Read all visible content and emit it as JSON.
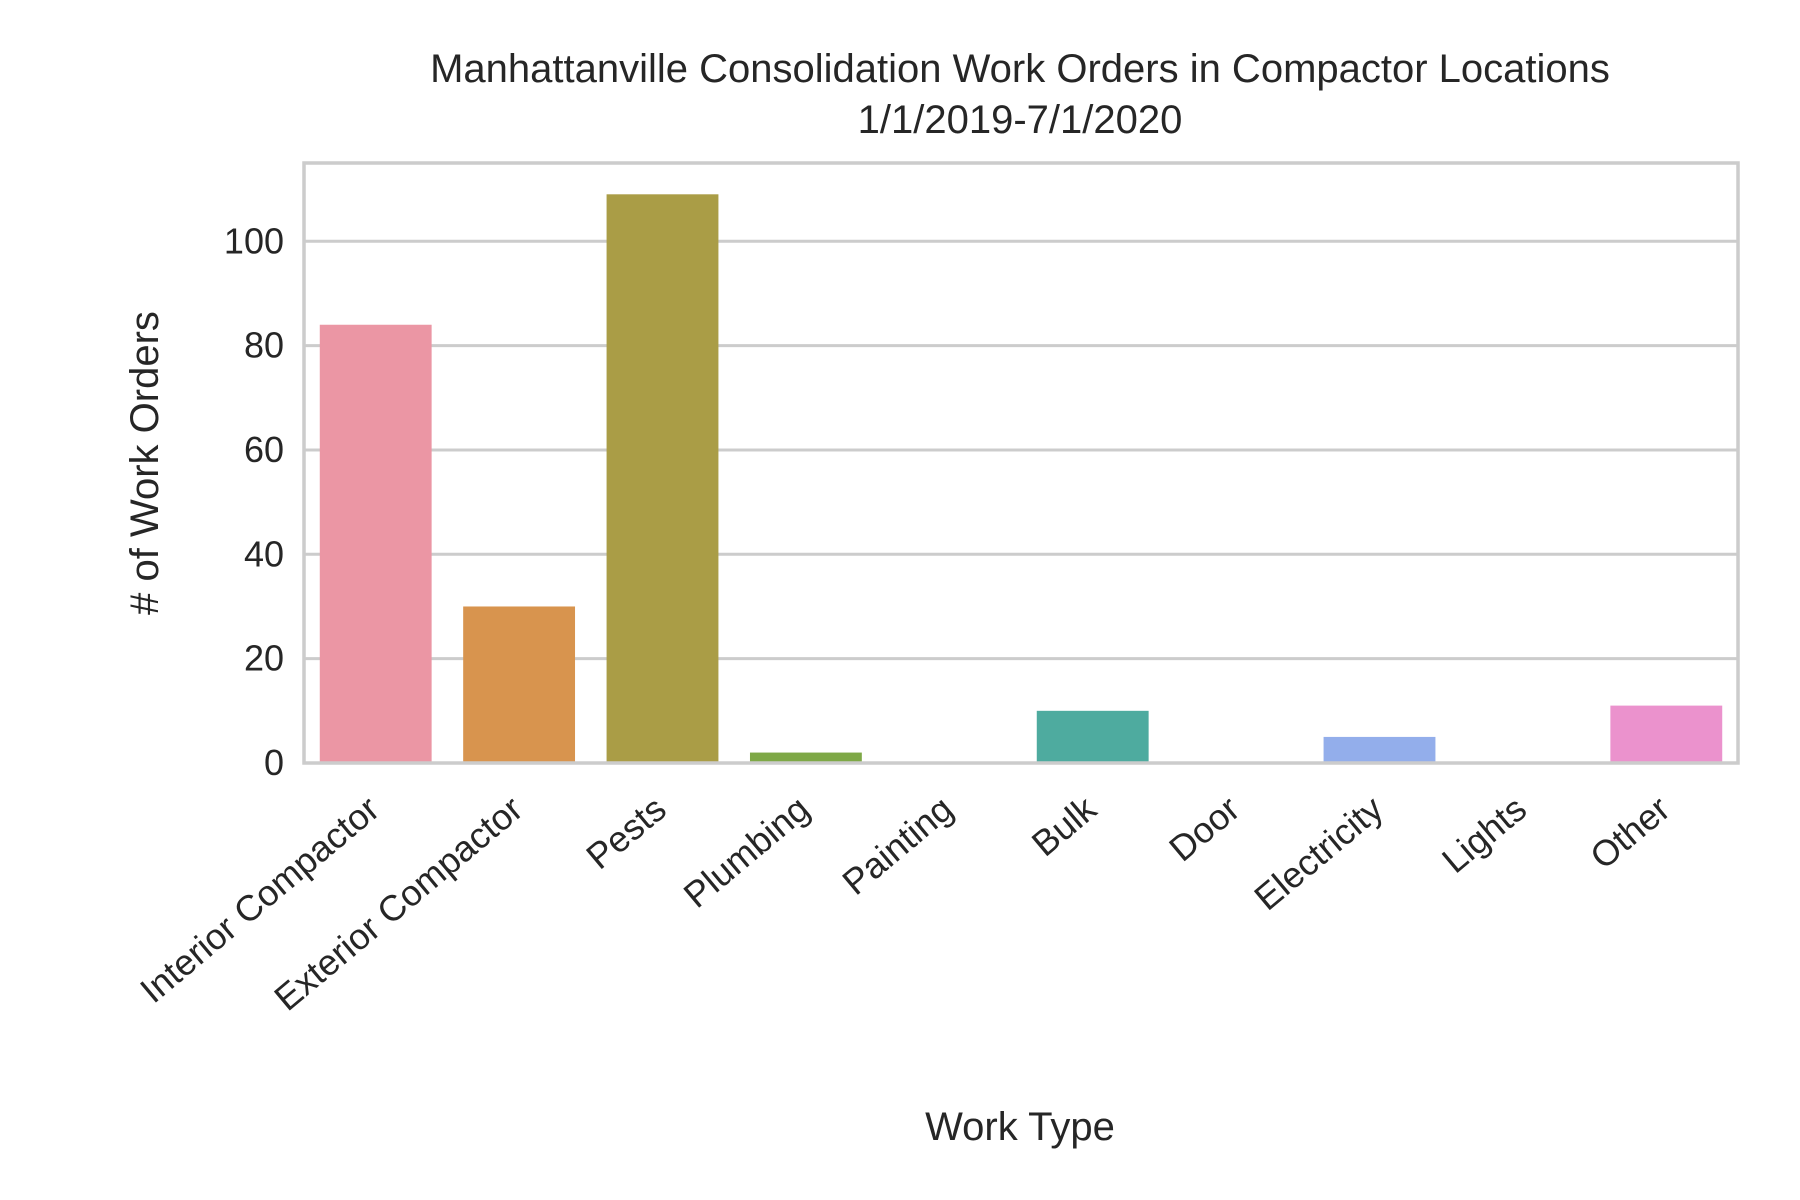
{
  "chart_data": {
    "type": "bar",
    "title": "Manhattanville Consolidation Work Orders in Compactor Locations",
    "subtitle": "1/1/2019-7/1/2020",
    "xlabel": "Work Type",
    "ylabel": "# of Work Orders",
    "categories": [
      "Interior Compactor",
      "Exterior Compactor",
      "Pests",
      "Plumbing",
      "Painting",
      "Bulk",
      "Door",
      "Electricity",
      "Lights",
      "Other"
    ],
    "values": [
      84,
      30,
      109,
      2,
      0,
      10,
      0,
      5,
      0,
      11
    ],
    "colors": [
      "#eb96a4",
      "#d8944e",
      "#aa9d46",
      "#7ea846",
      "#55aa65",
      "#4eab9f",
      "#52a9c2",
      "#93aeeb",
      "#c998e8",
      "#eb92cd"
    ],
    "yticks": [
      0,
      20,
      40,
      60,
      80,
      100
    ],
    "ylim": [
      0,
      115
    ],
    "grid": true,
    "legend": "none"
  }
}
